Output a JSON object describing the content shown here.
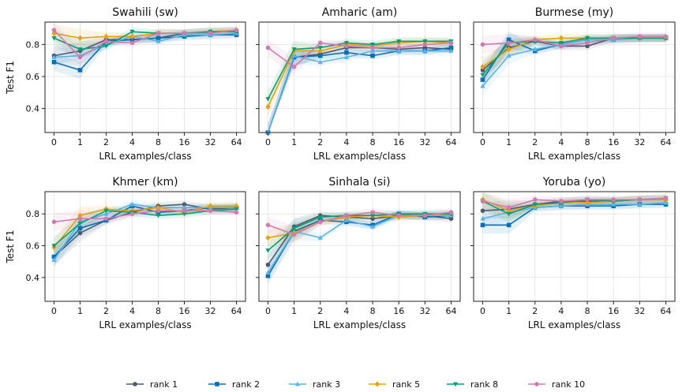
{
  "chart_data": {
    "type": "line",
    "x_ticks": [
      "0",
      "1",
      "2",
      "4",
      "8",
      "16",
      "32",
      "64"
    ],
    "xlabel": "LRL examples/class",
    "ylabel": "Test F1",
    "ylim": [
      0.25,
      0.94
    ],
    "y_ticks": [
      0.4,
      0.6,
      0.8
    ],
    "grid": true,
    "legend_position": "bottom-center",
    "series_styles": [
      {
        "name": "rank 1",
        "color": "#4d5a6b",
        "marker": "circle"
      },
      {
        "name": "rank 2",
        "color": "#0a6eb4",
        "marker": "square"
      },
      {
        "name": "rank 3",
        "color": "#55b4e8",
        "marker": "triangle-up"
      },
      {
        "name": "rank 5",
        "color": "#e5a10c",
        "marker": "diamond"
      },
      {
        "name": "rank 8",
        "color": "#0b9e73",
        "marker": "triangle-down"
      },
      {
        "name": "rank 10",
        "color": "#cf7bb0",
        "marker": "circle"
      }
    ],
    "panels": [
      {
        "title": "Swahili (sw)",
        "series": [
          {
            "name": "rank 1",
            "values": [
              0.73,
              0.76,
              0.83,
              0.83,
              0.84,
              0.87,
              0.88,
              0.88
            ]
          },
          {
            "name": "rank 2",
            "values": [
              0.69,
              0.64,
              0.82,
              0.83,
              0.84,
              0.85,
              0.86,
              0.86
            ]
          },
          {
            "name": "rank 3",
            "values": [
              0.72,
              0.73,
              0.8,
              0.85,
              0.82,
              0.86,
              0.86,
              0.87
            ]
          },
          {
            "name": "rank 5",
            "values": [
              0.87,
              0.84,
              0.85,
              0.85,
              0.87,
              0.87,
              0.88,
              0.89
            ]
          },
          {
            "name": "rank 8",
            "values": [
              0.84,
              0.77,
              0.79,
              0.88,
              0.87,
              0.87,
              0.88,
              0.88
            ]
          },
          {
            "name": "rank 10",
            "values": [
              0.89,
              0.72,
              0.82,
              0.81,
              0.87,
              0.87,
              0.87,
              0.89
            ]
          }
        ]
      },
      {
        "title": "Amharic (am)",
        "series": [
          {
            "name": "rank 1",
            "values": [
              0.25,
              0.72,
              0.74,
              0.78,
              0.78,
              0.77,
              0.78,
              0.77
            ]
          },
          {
            "name": "rank 2",
            "values": [
              0.25,
              0.72,
              0.73,
              0.75,
              0.73,
              0.76,
              0.76,
              0.78
            ]
          },
          {
            "name": "rank 3",
            "values": [
              0.25,
              0.73,
              0.69,
              0.72,
              0.76,
              0.76,
              0.76,
              0.76
            ]
          },
          {
            "name": "rank 5",
            "values": [
              0.41,
              0.76,
              0.76,
              0.8,
              0.79,
              0.81,
              0.82,
              0.81
            ]
          },
          {
            "name": "rank 8",
            "values": [
              0.46,
              0.77,
              0.78,
              0.81,
              0.8,
              0.82,
              0.82,
              0.82
            ]
          },
          {
            "name": "rank 10",
            "values": [
              0.78,
              0.66,
              0.81,
              0.79,
              0.78,
              0.78,
              0.8,
              0.81
            ]
          }
        ]
      },
      {
        "title": "Burmese (my)",
        "series": [
          {
            "name": "rank 1",
            "values": [
              0.64,
              0.78,
              0.82,
              0.79,
              0.79,
              0.84,
              0.84,
              0.84
            ]
          },
          {
            "name": "rank 2",
            "values": [
              0.58,
              0.83,
              0.76,
              0.8,
              0.83,
              0.83,
              0.84,
              0.84
            ]
          },
          {
            "name": "rank 3",
            "values": [
              0.54,
              0.73,
              0.77,
              0.8,
              0.83,
              0.83,
              0.84,
              0.84
            ]
          },
          {
            "name": "rank 5",
            "values": [
              0.66,
              0.77,
              0.83,
              0.84,
              0.84,
              0.84,
              0.84,
              0.84
            ]
          },
          {
            "name": "rank 8",
            "values": [
              0.61,
              0.81,
              0.82,
              0.81,
              0.84,
              0.84,
              0.84,
              0.84
            ]
          },
          {
            "name": "rank 10",
            "values": [
              0.8,
              0.81,
              0.83,
              0.79,
              0.81,
              0.84,
              0.85,
              0.85
            ]
          }
        ]
      },
      {
        "title": "Khmer (km)",
        "series": [
          {
            "name": "rank 1",
            "values": [
              0.53,
              0.68,
              0.76,
              0.81,
              0.85,
              0.86,
              0.83,
              0.84
            ]
          },
          {
            "name": "rank 2",
            "values": [
              0.53,
              0.71,
              0.76,
              0.85,
              0.81,
              0.82,
              0.84,
              0.84
            ]
          },
          {
            "name": "rank 3",
            "values": [
              0.51,
              0.75,
              0.8,
              0.86,
              0.84,
              0.84,
              0.84,
              0.84
            ]
          },
          {
            "name": "rank 5",
            "values": [
              0.59,
              0.79,
              0.83,
              0.82,
              0.84,
              0.81,
              0.85,
              0.85
            ]
          },
          {
            "name": "rank 8",
            "values": [
              0.6,
              0.74,
              0.82,
              0.81,
              0.79,
              0.8,
              0.82,
              0.83
            ]
          },
          {
            "name": "rank 10",
            "values": [
              0.75,
              0.77,
              0.77,
              0.8,
              0.82,
              0.82,
              0.82,
              0.81
            ]
          }
        ]
      },
      {
        "title": "Sinhala (si)",
        "series": [
          {
            "name": "rank 1",
            "values": [
              0.48,
              0.72,
              0.79,
              0.78,
              0.77,
              0.79,
              0.79,
              0.77
            ]
          },
          {
            "name": "rank 2",
            "values": [
              0.41,
              0.69,
              0.76,
              0.75,
              0.73,
              0.8,
              0.78,
              0.79
            ]
          },
          {
            "name": "rank 3",
            "values": [
              0.43,
              0.69,
              0.65,
              0.76,
              0.72,
              0.79,
              0.79,
              0.79
            ]
          },
          {
            "name": "rank 5",
            "values": [
              0.65,
              0.68,
              0.75,
              0.78,
              0.79,
              0.78,
              0.79,
              0.8
            ]
          },
          {
            "name": "rank 8",
            "values": [
              0.57,
              0.71,
              0.78,
              0.79,
              0.79,
              0.8,
              0.8,
              0.8
            ]
          },
          {
            "name": "rank 10",
            "values": [
              0.73,
              0.67,
              0.75,
              0.79,
              0.81,
              0.79,
              0.79,
              0.81
            ]
          }
        ]
      },
      {
        "title": "Yoruba (yo)",
        "series": [
          {
            "name": "rank 1",
            "values": [
              0.82,
              0.83,
              0.86,
              0.88,
              0.88,
              0.88,
              0.89,
              0.89
            ]
          },
          {
            "name": "rank 2",
            "values": [
              0.73,
              0.73,
              0.84,
              0.85,
              0.85,
              0.85,
              0.86,
              0.86
            ]
          },
          {
            "name": "rank 3",
            "values": [
              0.77,
              0.81,
              0.84,
              0.85,
              0.86,
              0.86,
              0.86,
              0.87
            ]
          },
          {
            "name": "rank 5",
            "values": [
              0.89,
              0.82,
              0.85,
              0.87,
              0.87,
              0.88,
              0.89,
              0.89
            ]
          },
          {
            "name": "rank 8",
            "values": [
              0.88,
              0.8,
              0.86,
              0.87,
              0.89,
              0.88,
              0.89,
              0.9
            ]
          },
          {
            "name": "rank 10",
            "values": [
              0.88,
              0.84,
              0.89,
              0.88,
              0.89,
              0.89,
              0.89,
              0.9
            ]
          }
        ]
      }
    ]
  }
}
